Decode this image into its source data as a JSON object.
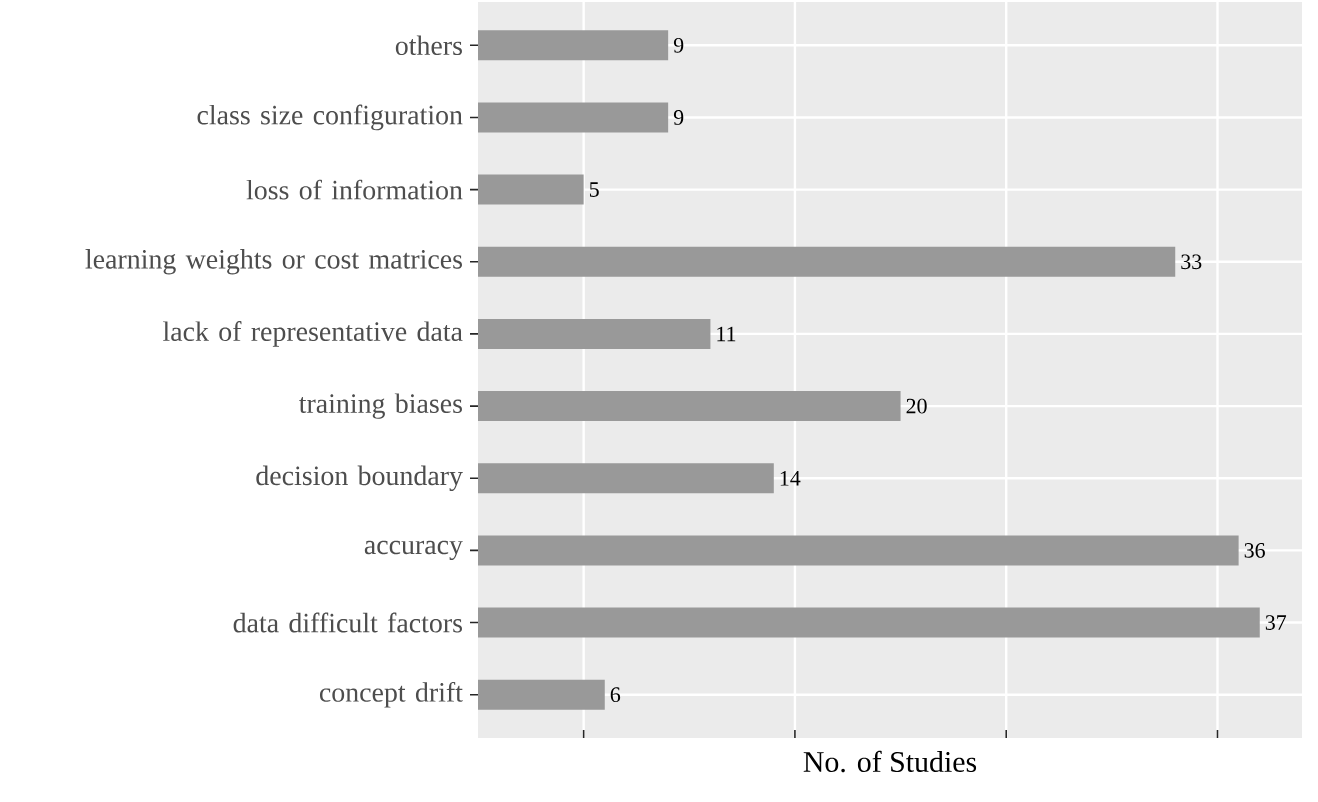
{
  "chart_data": {
    "type": "bar",
    "orientation": "horizontal",
    "categories": [
      "others",
      "class size configuration",
      "loss of information",
      "learning weights or cost matrices",
      "lack of representative data",
      "training biases",
      "decision boundary",
      "accuracy",
      "data difficult factors",
      "concept drift"
    ],
    "values": [
      9,
      9,
      5,
      33,
      11,
      20,
      14,
      36,
      37,
      6
    ],
    "color": "#999999",
    "xlabel": "No. of Studies",
    "xlim": [
      0,
      39
    ],
    "xticks": [
      {
        "value": 5,
        "label": null
      },
      {
        "value": 15,
        "label": null
      },
      {
        "value": 25,
        "label": null
      },
      {
        "value": 35,
        "label": null
      }
    ],
    "grid": true,
    "tick_labels": "y",
    "data_labels": true
  }
}
